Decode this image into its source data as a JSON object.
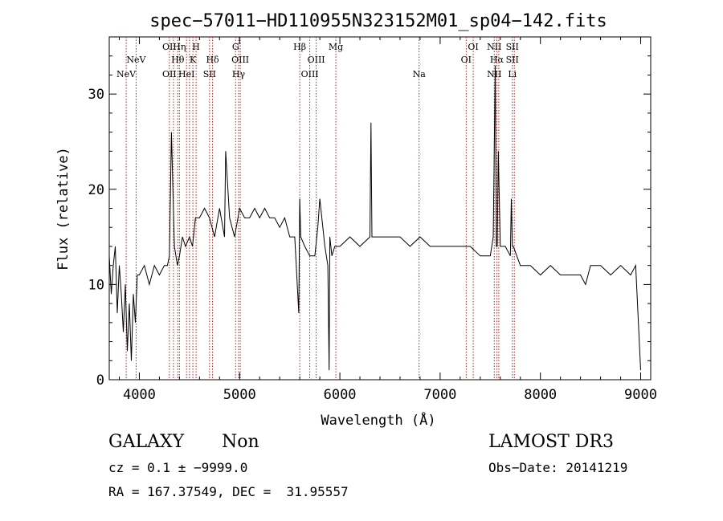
{
  "chart_data": {
    "type": "line",
    "title": "spec−57011−HD110955N323152M01_sp04−142.fits",
    "xlabel": "Wavelength (Å)",
    "ylabel": "Flux (relative)",
    "xlim": [
      3700,
      9100
    ],
    "ylim": [
      0,
      36
    ],
    "xticks": [
      4000,
      5000,
      6000,
      7000,
      8000,
      9000
    ],
    "yticks": [
      0,
      10,
      20,
      30
    ],
    "grid": false,
    "line_color": "#000000",
    "marker_color": "#b22222",
    "spectrum": {
      "x": [
        3700,
        3720,
        3740,
        3760,
        3780,
        3800,
        3820,
        3840,
        3860,
        3880,
        3900,
        3920,
        3940,
        3960,
        3980,
        4000,
        4050,
        4100,
        4150,
        4200,
        4250,
        4280,
        4300,
        4320,
        4350,
        4380,
        4400,
        4430,
        4460,
        4500,
        4530,
        4560,
        4600,
        4650,
        4700,
        4750,
        4800,
        4850,
        4861,
        4900,
        4950,
        5000,
        5050,
        5100,
        5150,
        5200,
        5250,
        5300,
        5350,
        5400,
        5450,
        5500,
        5550,
        5590,
        5600,
        5610,
        5650,
        5700,
        5750,
        5780,
        5800,
        5850,
        5880,
        5893,
        5900,
        5920,
        5950,
        6000,
        6100,
        6200,
        6300,
        6310,
        6320,
        6400,
        6500,
        6600,
        6700,
        6800,
        6900,
        7000,
        7100,
        7200,
        7300,
        7400,
        7500,
        7530,
        7550,
        7560,
        7570,
        7580,
        7600,
        7650,
        7700,
        7710,
        7720,
        7730,
        7800,
        7900,
        8000,
        8100,
        8200,
        8300,
        8400,
        8450,
        8500,
        8600,
        8700,
        8800,
        8900,
        8950,
        9000
      ],
      "y": [
        13,
        9,
        12,
        14,
        7,
        12,
        9,
        5,
        10,
        3,
        8,
        2,
        9,
        6,
        11,
        11,
        12,
        10,
        12,
        11,
        12,
        12,
        13,
        26,
        14,
        12,
        13,
        15,
        14,
        15,
        14,
        17,
        17,
        18,
        17,
        15,
        18,
        15,
        24,
        17,
        15,
        18,
        17,
        17,
        18,
        17,
        18,
        17,
        17,
        16,
        17,
        15,
        15,
        7,
        19,
        15,
        14,
        13,
        13,
        16,
        19,
        14,
        12,
        1,
        15,
        13,
        14,
        14,
        15,
        14,
        15,
        27,
        15,
        15,
        15,
        15,
        14,
        15,
        14,
        14,
        14,
        14,
        14,
        13,
        13,
        15,
        33,
        14,
        14,
        24,
        14,
        14,
        13,
        19,
        14,
        14,
        12,
        12,
        11,
        12,
        11,
        11,
        11,
        10,
        12,
        12,
        11,
        12,
        11,
        12,
        1
      ]
    },
    "annotations": {
      "title": "spec−57011−HD110955N323152M01_sp04−142.fits",
      "lines": [
        {
          "wl": 3869,
          "top": "",
          "mid": "",
          "bot": "NeV"
        },
        {
          "wl": 3968,
          "top": "",
          "mid": "NeV",
          "bot": ""
        },
        {
          "wl": 4300,
          "top": "OII",
          "mid": "",
          "bot": "OII"
        },
        {
          "wl": 4340,
          "top": "",
          "mid": "",
          "bot": ""
        },
        {
          "wl": 4383,
          "top": "",
          "mid": "Hθ",
          "bot": ""
        },
        {
          "wl": 4400,
          "top": "Hη",
          "mid": "",
          "bot": ""
        },
        {
          "wl": 4471,
          "top": "",
          "mid": "",
          "bot": "HeI"
        },
        {
          "wl": 4500,
          "top": "",
          "mid": "",
          "bot": ""
        },
        {
          "wl": 4534,
          "top": "",
          "mid": "K",
          "bot": ""
        },
        {
          "wl": 4566,
          "top": "H",
          "mid": "",
          "bot": ""
        },
        {
          "wl": 4700,
          "top": "",
          "mid": "",
          "bot": "SII"
        },
        {
          "wl": 4730,
          "top": "",
          "mid": "Hδ",
          "bot": ""
        },
        {
          "wl": 4960,
          "top": "G",
          "mid": "",
          "bot": ""
        },
        {
          "wl": 4990,
          "top": "",
          "mid": "",
          "bot": "Hγ"
        },
        {
          "wl": 5007,
          "top": "",
          "mid": "OIII",
          "bot": ""
        },
        {
          "wl": 5600,
          "top": "Hβ",
          "mid": "",
          "bot": ""
        },
        {
          "wl": 5700,
          "top": "",
          "mid": "",
          "bot": "OIII"
        },
        {
          "wl": 5764,
          "top": "",
          "mid": "OIII",
          "bot": ""
        },
        {
          "wl": 5960,
          "top": "Mg",
          "mid": "",
          "bot": ""
        },
        {
          "wl": 6790,
          "top": "",
          "mid": "",
          "bot": "Na"
        },
        {
          "wl": 7260,
          "top": "",
          "mid": "OI",
          "bot": ""
        },
        {
          "wl": 7330,
          "top": "OI",
          "mid": "",
          "bot": ""
        },
        {
          "wl": 7540,
          "top": "NII",
          "mid": "",
          "bot": "NII"
        },
        {
          "wl": 7565,
          "top": "",
          "mid": "Hα",
          "bot": ""
        },
        {
          "wl": 7585,
          "top": "",
          "mid": "",
          "bot": ""
        },
        {
          "wl": 7720,
          "top": "SII",
          "mid": "SII",
          "bot": "Li"
        },
        {
          "wl": 7740,
          "top": "",
          "mid": "",
          "bot": ""
        }
      ]
    }
  },
  "info": {
    "class_label": "GALAXY",
    "subclass_label": "Non",
    "survey_label": "LAMOST DR3",
    "cz_line": "cz = 0.1 ± −9999.0",
    "obs_date_line": "Obs−Date: 20141219",
    "radec_line": "RA = 167.37549, DEC =  31.95557"
  }
}
